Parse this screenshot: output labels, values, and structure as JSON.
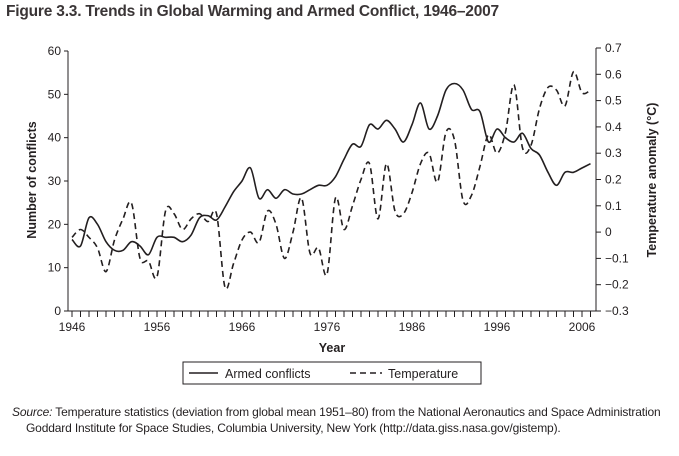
{
  "title": "Figure 3.3. Trends in Global Warming and Armed Conflict, 1946–2007",
  "source_label": "Source:",
  "source_text": "Temperature statistics (deviation from global mean 1951–80) from the National Aeronautics and Space Administration Goddard Institute for Space Studies, Columbia University, New York (http://data.giss.nasa.gov/gistemp).",
  "chart_data": {
    "type": "line",
    "title": "Figure 3.3. Trends in Global Warming and Armed Conflict, 1946–2007",
    "xlabel": "Year",
    "ylabel": "Number of conflicts",
    "y2label": "Temperature anomaly (°C)",
    "xlim": [
      1946,
      2007
    ],
    "ylim": [
      0,
      60
    ],
    "y2lim": [
      -0.3,
      0.7
    ],
    "x_ticks": [
      "1946",
      "1956",
      "1966",
      "1976",
      "1986",
      "1996",
      "2006"
    ],
    "y_ticks": [
      "0",
      "10",
      "20",
      "30",
      "40",
      "50",
      "60"
    ],
    "y2_ticks": [
      "−0.3",
      "−0.2",
      "−0.1",
      "0",
      "0.1",
      "0.2",
      "0.3",
      "0.4",
      "0.5",
      "0.6",
      "0.7"
    ],
    "grid": false,
    "legend_position": "bottom",
    "x": [
      1946,
      1947,
      1948,
      1949,
      1950,
      1951,
      1952,
      1953,
      1954,
      1955,
      1956,
      1957,
      1958,
      1959,
      1960,
      1961,
      1962,
      1963,
      1964,
      1965,
      1966,
      1967,
      1968,
      1969,
      1970,
      1971,
      1972,
      1973,
      1974,
      1975,
      1976,
      1977,
      1978,
      1979,
      1980,
      1981,
      1982,
      1983,
      1984,
      1985,
      1986,
      1987,
      1988,
      1989,
      1990,
      1991,
      1992,
      1993,
      1994,
      1995,
      1996,
      1997,
      1998,
      1999,
      2000,
      2001,
      2002,
      2003,
      2004,
      2005,
      2006,
      2007
    ],
    "series": [
      {
        "name": "Armed conflicts",
        "axis": "left",
        "style": "solid",
        "color": "#231f20",
        "values": [
          16.5,
          15,
          21.5,
          20,
          16,
          14,
          14,
          16,
          15,
          13,
          17,
          17,
          17,
          16,
          17.5,
          21.5,
          22,
          21,
          24,
          27.5,
          30,
          33,
          26,
          28,
          26,
          28,
          27,
          27,
          28,
          29,
          29,
          31,
          35,
          38.5,
          38,
          43,
          42,
          44,
          42,
          39,
          43,
          48,
          42,
          45,
          51,
          52.5,
          51,
          46.5,
          46,
          39,
          42,
          40,
          39,
          41,
          37.5,
          36,
          32,
          29,
          32,
          32,
          33,
          34
        ]
      },
      {
        "name": "Temperature",
        "axis": "right",
        "style": "dashed",
        "color": "#231f20",
        "values": [
          -0.02,
          0.01,
          -0.02,
          -0.06,
          -0.15,
          -0.03,
          0.05,
          0.11,
          -0.1,
          -0.11,
          -0.17,
          0.08,
          0.07,
          0.01,
          0.05,
          0.07,
          0.04,
          0.07,
          -0.21,
          -0.12,
          -0.03,
          0.0,
          -0.04,
          0.08,
          0.03,
          -0.1,
          0.0,
          0.13,
          -0.08,
          -0.06,
          -0.16,
          0.13,
          0.01,
          0.1,
          0.2,
          0.26,
          0.05,
          0.26,
          0.08,
          0.07,
          0.15,
          0.26,
          0.3,
          0.19,
          0.38,
          0.35,
          0.12,
          0.14,
          0.25,
          0.37,
          0.3,
          0.38,
          0.56,
          0.32,
          0.33,
          0.47,
          0.55,
          0.54,
          0.48,
          0.61,
          0.53,
          0.54
        ]
      }
    ]
  }
}
